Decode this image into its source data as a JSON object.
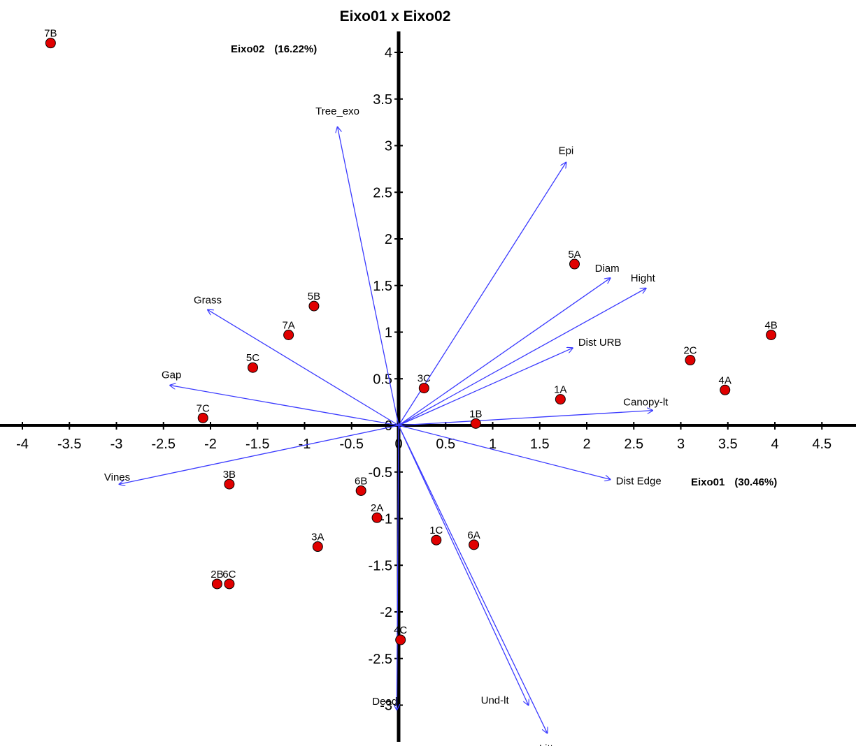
{
  "chart_data": {
    "type": "scatter",
    "title": "Eixo01 x Eixo02",
    "xlabel": "Eixo01",
    "xvar": "(30.46%)",
    "ylabel": "Eixo02",
    "yvar": "(16.22%)",
    "xlim": [
      -4.3,
      4.8
    ],
    "ylim": [
      -3.45,
      4.35
    ],
    "xticks": [
      -4,
      -3.5,
      -3,
      -2.5,
      -2,
      -1.5,
      -1,
      -0.5,
      0,
      0.5,
      1,
      1.5,
      2,
      2.5,
      3,
      3.5,
      4,
      4.5
    ],
    "xtick_labels": [
      "-4",
      "-3.5",
      "-3",
      "-2.5",
      "-2",
      "-1.5",
      "-1",
      "-0.5",
      "0",
      "0.5",
      "1",
      "1.5",
      "2",
      "2.5",
      "3",
      "3.5",
      "4",
      "4.5"
    ],
    "yticks": [
      -3,
      -2.5,
      -2,
      -1.5,
      -1,
      -0.5,
      0,
      0.5,
      1,
      1.5,
      2,
      2.5,
      3,
      3.5,
      4
    ],
    "ytick_labels": [
      "-3",
      "-2.5",
      "-2",
      "-1.5",
      "-1",
      "-0.5",
      "0",
      "0.5",
      "1",
      "1.5",
      "2",
      "2.5",
      "3",
      "3.5",
      "4"
    ],
    "grid": false,
    "point_color": "#e00000",
    "vector_color": "#3b3bff",
    "points": [
      {
        "label": "7B",
        "x": -3.7,
        "y": 4.1
      },
      {
        "label": "5A",
        "x": 1.87,
        "y": 1.73
      },
      {
        "label": "5B",
        "x": -0.9,
        "y": 1.28
      },
      {
        "label": "7A",
        "x": -1.17,
        "y": 0.97
      },
      {
        "label": "4B",
        "x": 3.96,
        "y": 0.97
      },
      {
        "label": "2C",
        "x": 3.1,
        "y": 0.7
      },
      {
        "label": "5C",
        "x": -1.55,
        "y": 0.62
      },
      {
        "label": "3C",
        "x": 0.27,
        "y": 0.4
      },
      {
        "label": "4A",
        "x": 3.47,
        "y": 0.38
      },
      {
        "label": "1A",
        "x": 1.72,
        "y": 0.28
      },
      {
        "label": "7C",
        "x": -2.08,
        "y": 0.08
      },
      {
        "label": "1B",
        "x": 0.82,
        "y": 0.02
      },
      {
        "label": "3B",
        "x": -1.8,
        "y": -0.63
      },
      {
        "label": "6B",
        "x": -0.4,
        "y": -0.7
      },
      {
        "label": "2A",
        "x": -0.23,
        "y": -0.99
      },
      {
        "label": "1C",
        "x": 0.4,
        "y": -1.23
      },
      {
        "label": "6A",
        "x": 0.8,
        "y": -1.28
      },
      {
        "label": "3A",
        "x": -0.86,
        "y": -1.3
      },
      {
        "label": "2B",
        "x": -1.93,
        "y": -1.7
      },
      {
        "label": "6C",
        "x": -1.8,
        "y": -1.7
      },
      {
        "label": "4C",
        "x": 0.02,
        "y": -2.3
      }
    ],
    "vectors": [
      {
        "label": "Tree_exo",
        "x": -0.65,
        "y": 3.2
      },
      {
        "label": "Epi",
        "x": 1.78,
        "y": 2.82
      },
      {
        "label": "Diam",
        "x": 2.25,
        "y": 1.58
      },
      {
        "label": "Hight",
        "x": 2.63,
        "y": 1.47
      },
      {
        "label": "Dist URB",
        "x": 1.85,
        "y": 0.83
      },
      {
        "label": "Canopy-lt",
        "x": 2.7,
        "y": 0.16
      },
      {
        "label": "Dist Edge",
        "x": 2.25,
        "y": -0.58
      },
      {
        "label": "Grass",
        "x": -2.03,
        "y": 1.24
      },
      {
        "label": "Gap",
        "x": -2.43,
        "y": 0.43
      },
      {
        "label": "Vines",
        "x": -2.97,
        "y": -0.63
      },
      {
        "label": "Dead",
        "x": -0.02,
        "y": -3.05
      },
      {
        "label": "Und-lt",
        "x": 1.38,
        "y": -3.0
      },
      {
        "label": "Litter",
        "x": 1.58,
        "y": -3.3
      }
    ]
  }
}
